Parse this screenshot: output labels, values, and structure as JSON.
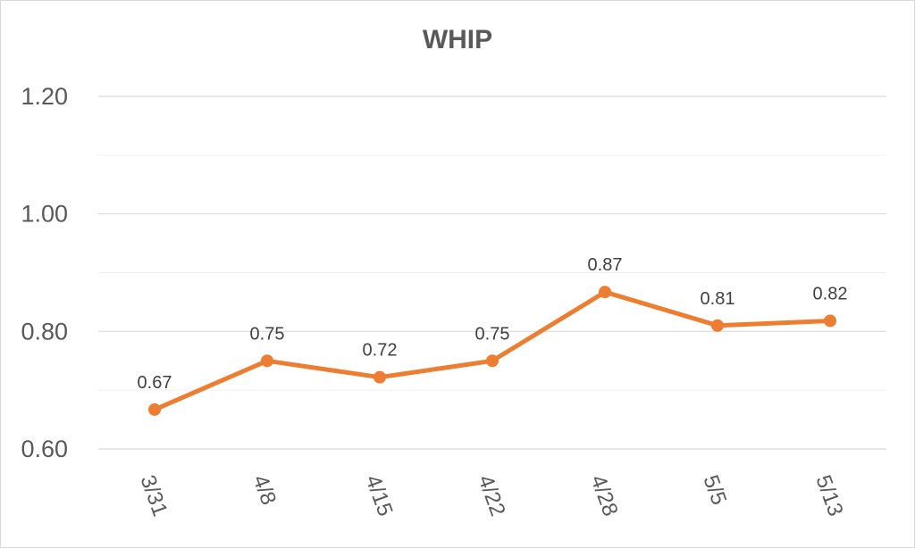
{
  "chart_data": {
    "type": "line",
    "title": "WHIP",
    "xlabel": "",
    "ylabel": "",
    "categories": [
      "3/31",
      "4/8",
      "4/15",
      "4/22",
      "4/28",
      "5/5",
      "5/13"
    ],
    "series": [
      {
        "values": [
          0.667,
          0.75,
          0.722,
          0.75,
          0.867,
          0.81,
          0.818
        ],
        "data_labels": [
          "0.67",
          "0.75",
          "0.72",
          "0.75",
          "0.87",
          "0.81",
          "0.82"
        ],
        "color": "#ED7D31",
        "markers": true
      }
    ],
    "ylim": [
      0.6,
      1.2
    ],
    "yticks": [
      0.6,
      0.8,
      1.0,
      1.2
    ],
    "ytick_labels": [
      "0.60",
      "0.80",
      "1.00",
      "1.20"
    ],
    "minor_gridlines": [
      0.7,
      0.9,
      1.1
    ],
    "grid": true,
    "legend": "none",
    "gridline_color": "#d9d9d9"
  }
}
